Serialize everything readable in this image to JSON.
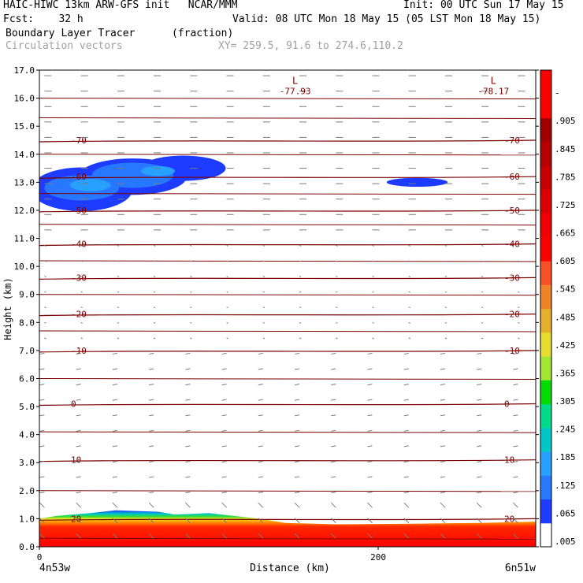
{
  "header": {
    "line1_left": "HAIC-HIWC 13km ARW-GFS init   NCAR/MMM",
    "line1_right": "Init: 00 UTC Sun 17 May 15",
    "fcst": "Fcst:    32 h",
    "valid": "Valid: 08 UTC Mon 18 May 15 (05 LST Mon 18 May 15)",
    "field": "Boundary Layer Tracer",
    "units": "(fraction)",
    "vectors": "Circulation vectors",
    "xy": "XY= 259.5, 91.6 to 274.6,110.2"
  },
  "chart_data": {
    "type": "heatmap",
    "title": "Boundary Layer Tracer",
    "xlabel": "Distance (km)",
    "ylabel": "Height (km)",
    "xlim": [
      0,
      293
    ],
    "ylim": [
      0,
      17
    ],
    "x_ticks": [
      "0",
      "200"
    ],
    "x_end_labels": [
      "4n53w",
      "6n51w"
    ],
    "y_ticks": [
      "0.0",
      "1.0",
      "2.0",
      "3.0",
      "4.0",
      "5.0",
      "6.0",
      "7.0",
      "8.0",
      "9.0",
      "10.0",
      "11.0",
      "12.0",
      "13.0",
      "14.0",
      "15.0",
      "16.0",
      "17.0"
    ],
    "colorbar": {
      "labels": [
        ".005",
        ".065",
        ".125",
        ".185",
        ".245",
        ".305",
        ".365",
        ".425",
        ".485",
        ".545",
        ".605",
        ".665",
        ".725",
        ".785",
        ".845",
        ".905",
        "-"
      ],
      "colors": [
        "#ffffff",
        "#1e3cff",
        "#2878ff",
        "#28a0ff",
        "#00c8c8",
        "#00dc8c",
        "#00dc00",
        "#a0e632",
        "#e6dc32",
        "#e6af2d",
        "#f08228",
        "#fa5028",
        "#ff0000",
        "#f00000",
        "#dc0000",
        "#c80000",
        "#b40000",
        "#a00000",
        "#ff0000",
        "#ff0000"
      ]
    },
    "temperature_contours": [
      {
        "label": "-70",
        "height": 14.5
      },
      {
        "label": "-60",
        "height": 13.2
      },
      {
        "label": "-50",
        "height": 12.0
      },
      {
        "label": "-40",
        "height": 10.8
      },
      {
        "label": "-30",
        "height": 9.6
      },
      {
        "label": "-20",
        "height": 8.3
      },
      {
        "label": "-10",
        "height": 7.0
      },
      {
        "label": "0",
        "height": 5.1
      },
      {
        "label": "10",
        "height": 3.1
      },
      {
        "label": "20",
        "height": 1.0
      }
    ],
    "lows": [
      {
        "label": "L",
        "value": "-77.93",
        "x": 151,
        "height": 16.4
      },
      {
        "label": "L",
        "value": "-78.17",
        "x": 268,
        "height": 16.4
      }
    ],
    "boundary_layer_top_km": 1.0,
    "tracer_plume_heights_km": [
      12.3,
      13.8
    ]
  }
}
